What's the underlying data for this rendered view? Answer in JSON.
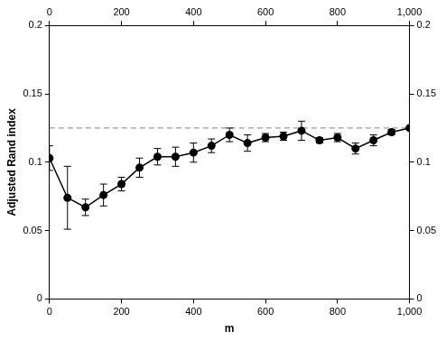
{
  "chart_data": {
    "type": "line",
    "x_label": "m",
    "y_label": "Adjusted Rand index",
    "x": [
      0,
      50,
      100,
      150,
      200,
      250,
      300,
      350,
      400,
      450,
      500,
      550,
      600,
      650,
      700,
      750,
      800,
      850,
      900,
      950,
      1000
    ],
    "values": [
      0.103,
      0.074,
      0.067,
      0.076,
      0.084,
      0.096,
      0.104,
      0.104,
      0.107,
      0.112,
      0.12,
      0.114,
      0.118,
      0.119,
      0.123,
      0.116,
      0.118,
      0.11,
      0.116,
      0.122,
      0.125
    ],
    "errors": [
      0.009,
      0.023,
      0.006,
      0.008,
      0.005,
      0.007,
      0.006,
      0.007,
      0.007,
      0.005,
      0.005,
      0.006,
      0.003,
      0.003,
      0.007,
      0.002,
      0.003,
      0.004,
      0.004,
      0.002,
      null
    ],
    "reference_line": 0.125,
    "color": "#000000",
    "marker": "circle",
    "line_style": "solid",
    "grid": false,
    "xlim": [
      0,
      1000
    ],
    "ylim": [
      0,
      0.2
    ],
    "xticks": [
      0,
      200,
      400,
      600,
      800,
      {
        "value": 1000,
        "label": "1,000"
      }
    ],
    "yticks": [
      0,
      0.05,
      0.1,
      0.15,
      0.2
    ]
  }
}
